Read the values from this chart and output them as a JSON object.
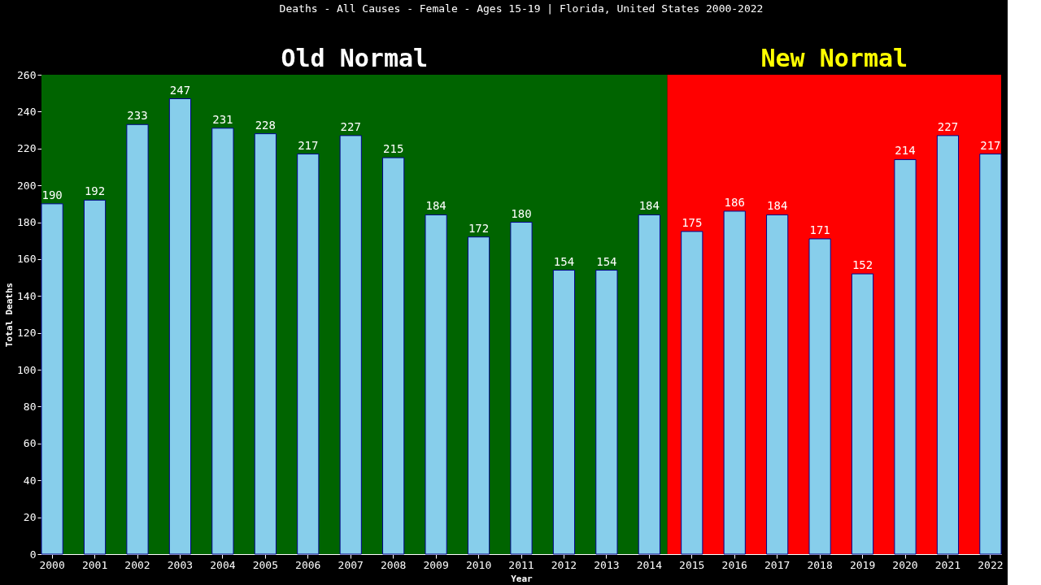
{
  "chart_data": {
    "type": "bar",
    "title": "Deaths - All Causes - Female - Ages 15-19 | Florida, United States 2000-2022",
    "xlabel": "Year",
    "ylabel": "Total Deaths",
    "categories": [
      "2000",
      "2001",
      "2002",
      "2003",
      "2004",
      "2005",
      "2006",
      "2007",
      "2008",
      "2009",
      "2010",
      "2011",
      "2012",
      "2013",
      "2014",
      "2015",
      "2016",
      "2017",
      "2018",
      "2019",
      "2020",
      "2021",
      "2022"
    ],
    "values": [
      190,
      192,
      233,
      247,
      231,
      228,
      217,
      227,
      215,
      184,
      172,
      180,
      154,
      154,
      184,
      175,
      186,
      184,
      171,
      152,
      214,
      227,
      217
    ],
    "color": "#87ceeb",
    "data_labels": true,
    "ylim": [
      0,
      260
    ],
    "yticks": [
      0,
      20,
      40,
      60,
      80,
      100,
      120,
      140,
      160,
      180,
      200,
      220,
      240,
      260
    ],
    "grid": false,
    "bands": [
      {
        "axis": "x",
        "from": "2000",
        "to": "2014",
        "label": "Old Normal",
        "color": "#006400"
      },
      {
        "axis": "x",
        "from": "2015",
        "to": "2022",
        "label": "New Normal",
        "color": "#ff0000"
      }
    ]
  }
}
